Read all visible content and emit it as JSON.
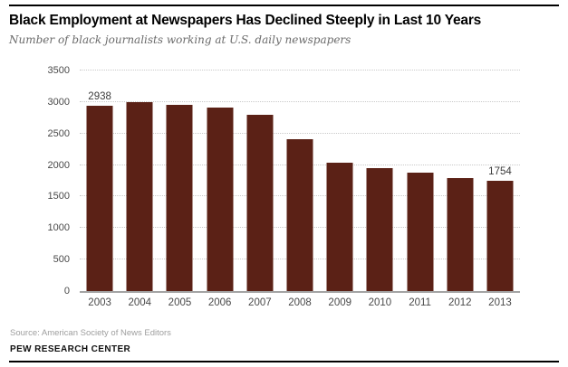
{
  "page": {
    "title": "Black Employment at Newspapers Has Declined Steeply in Last 10 Years",
    "subtitle": "Number of black journalists working at U.S. daily newspapers",
    "source": "Source: American Society of News Editors",
    "footer": "PEW RESEARCH CENTER"
  },
  "colors": {
    "bar": "#5b2116",
    "gridline": "#c9c9c9",
    "axis_line": "#a3a3a3",
    "tick_label": "#494949",
    "value_label": "#3c3c3c",
    "subtitle_text": "#6b6b6b",
    "source_text": "#9e9e9e",
    "rule": "#000000"
  },
  "chart_data": {
    "type": "bar",
    "title": "Black Employment at Newspapers Has Declined Steeply in Last 10 Years",
    "subtitle": "Number of black journalists working at U.S. daily newspapers",
    "xlabel": "",
    "ylabel": "",
    "categories": [
      "2003",
      "2004",
      "2005",
      "2006",
      "2007",
      "2008",
      "2009",
      "2010",
      "2011",
      "2012",
      "2013"
    ],
    "values": [
      2938,
      3000,
      2960,
      2910,
      2800,
      2410,
      2030,
      1950,
      1880,
      1790,
      1754
    ],
    "value_labels": {
      "2003": "2938",
      "2013": "1754"
    },
    "ylim": [
      0,
      3500
    ],
    "ytick_step": 500,
    "ytick_labels": [
      "0",
      "500",
      "1000",
      "1500",
      "2000",
      "2500",
      "3000",
      "3500"
    ],
    "grid": "horizontal-dotted",
    "legend": "none",
    "bar_color": "#5b2116"
  }
}
